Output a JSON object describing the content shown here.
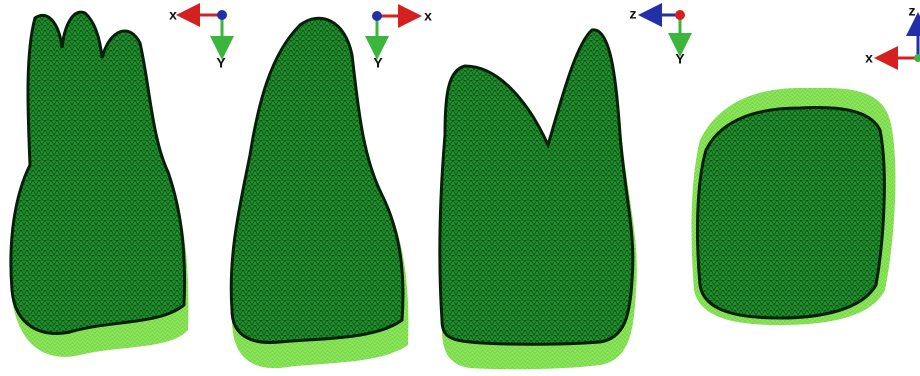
{
  "views": [
    {
      "axes": {
        "horizontal": "x",
        "vertical": "Y"
      }
    },
    {
      "axes": {
        "horizontal": "x",
        "vertical": "Y"
      }
    },
    {
      "axes": {
        "horizontal": "z",
        "vertical": "Y"
      }
    },
    {
      "axes": {
        "horizontal": "x",
        "vertical": "z"
      }
    }
  ]
}
